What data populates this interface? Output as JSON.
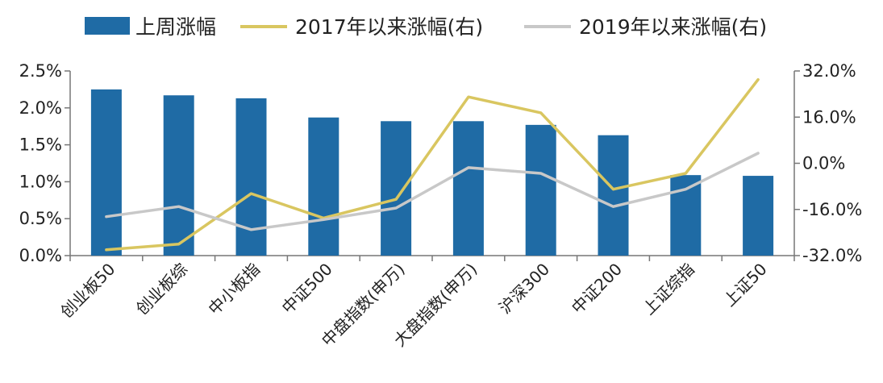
{
  "chart_data": {
    "type": "bar+line",
    "categories": [
      "创业板50",
      "创业板综",
      "中小板指",
      "中证500",
      "中盘指数(申万)",
      "大盘指数(申万)",
      "沪深300",
      "中证200",
      "上证综指",
      "上证50"
    ],
    "bar_series": {
      "name": "上周涨幅",
      "axis": "left",
      "color": "#1F6BA5",
      "values": [
        2.25,
        2.17,
        2.13,
        1.87,
        1.82,
        1.82,
        1.77,
        1.63,
        1.09,
        1.08
      ]
    },
    "line_series": [
      {
        "name": "2017年以来涨幅(右)",
        "axis": "right",
        "color": "#D9C660",
        "values": [
          -30.0,
          -28.0,
          -10.5,
          -19.0,
          -12.5,
          23.0,
          17.5,
          -9.0,
          -3.5,
          29.0
        ]
      },
      {
        "name": "2019年以来涨幅(右)",
        "axis": "right",
        "color": "#C8C8C8",
        "values": [
          -18.5,
          -15.0,
          -23.0,
          -19.5,
          -15.5,
          -1.5,
          -3.5,
          -15.0,
          -9.0,
          3.5
        ]
      }
    ],
    "left_axis": {
      "ylim": [
        0,
        2.5
      ],
      "ticks": [
        0.0,
        0.5,
        1.0,
        1.5,
        2.0,
        2.5
      ],
      "tick_labels": [
        "0.0%",
        "0.5%",
        "1.0%",
        "1.5%",
        "2.0%",
        "2.5%"
      ]
    },
    "right_axis": {
      "ylim": [
        -32,
        32
      ],
      "ticks": [
        -32,
        -16,
        0,
        16,
        32
      ],
      "tick_labels": [
        "-32.0%",
        "-16.0%",
        "0.0%",
        "16.0%",
        "32.0%"
      ]
    },
    "legend_position": "top",
    "grid": false
  }
}
